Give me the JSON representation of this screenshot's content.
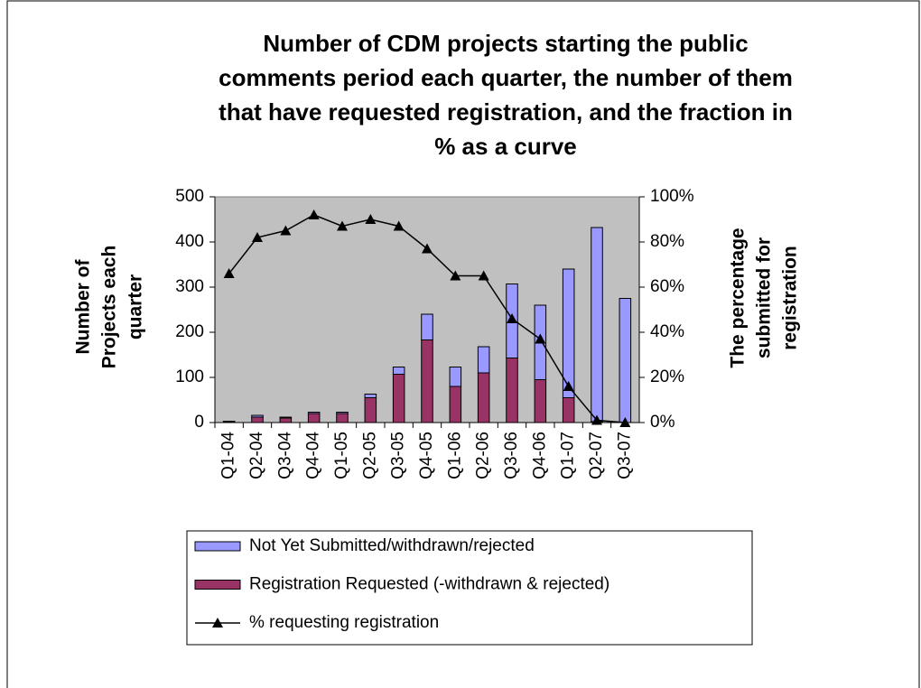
{
  "chart_data": {
    "type": "bar",
    "title": [
      "Number of CDM projects starting the public",
      "comments period each quarter, the number of them",
      "that have requested registration,  and the fraction in",
      "% as a curve"
    ],
    "y_label": [
      "Number of",
      "Projects each",
      "quarter"
    ],
    "y2_label": [
      "The percentage",
      "submitted for",
      "registration"
    ],
    "categories": [
      "Q1-04",
      "Q2-04",
      "Q3-04",
      "Q4-04",
      "Q1-05",
      "Q2-05",
      "Q3-05",
      "Q4-05",
      "Q1-06",
      "Q2-06",
      "Q3-06",
      "Q4-06",
      "Q1-07",
      "Q2-07",
      "Q3-07"
    ],
    "series": [
      {
        "name": "Not Yet Submitted/withdrawn/rejected",
        "color": "#9999ff",
        "stack": true,
        "values": [
          1,
          4,
          2,
          3,
          3,
          8,
          16,
          57,
          43,
          58,
          164,
          165,
          285,
          430,
          275
        ]
      },
      {
        "name": "Registration Requested  (-withdrawn & rejected)",
        "color": "#993366",
        "stack": true,
        "values": [
          2,
          12,
          10,
          20,
          20,
          55,
          107,
          183,
          80,
          110,
          143,
          95,
          55,
          2,
          0
        ]
      },
      {
        "name": "% requesting registration",
        "color": "#000000",
        "type": "line",
        "axis": "y2",
        "values": [
          66,
          82,
          85,
          92,
          87,
          90,
          87,
          77,
          65,
          65,
          46,
          37,
          16,
          1,
          0
        ]
      }
    ],
    "ylim": [
      0,
      500
    ],
    "yticks": [
      0,
      100,
      200,
      300,
      400,
      500
    ],
    "y2lim": [
      0,
      100
    ],
    "y2ticks": [
      {
        "value": 0,
        "label": "0%"
      },
      {
        "value": 20,
        "label": "20%"
      },
      {
        "value": 40,
        "label": "40%"
      },
      {
        "value": 60,
        "label": "60%"
      },
      {
        "value": 80,
        "label": "80%"
      },
      {
        "value": 100,
        "label": "100%"
      }
    ],
    "plot_background": "#c0c0c0"
  }
}
